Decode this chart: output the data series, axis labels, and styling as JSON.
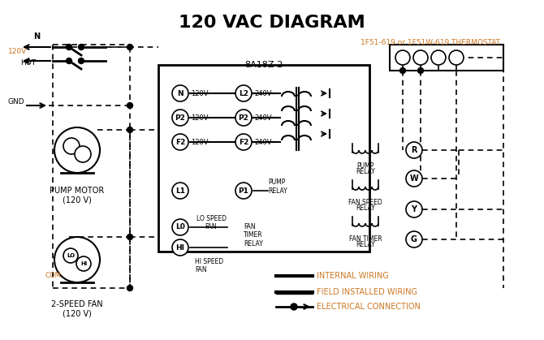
{
  "title": "120 VAC DIAGRAM",
  "title_color": "#000000",
  "title_fontsize": 16,
  "bg_color": "#ffffff",
  "label_color": "#cc7722",
  "thermostat_label": "1F51-619 or 1F51W-619 THERMOSTAT",
  "control_box_label": "8A18Z-2",
  "pump_motor_label": "PUMP MOTOR\n(120 V)",
  "fan_label": "2-SPEED FAN\n(120 V)",
  "legend_internal": "INTERNAL WIRING",
  "legend_field": "FIELD INSTALLED WIRING",
  "legend_elec": "ELECTRICAL CONNECTION",
  "terminals_r": "R",
  "terminals_w": "W",
  "terminals_y": "Y",
  "terminals_g": "G"
}
